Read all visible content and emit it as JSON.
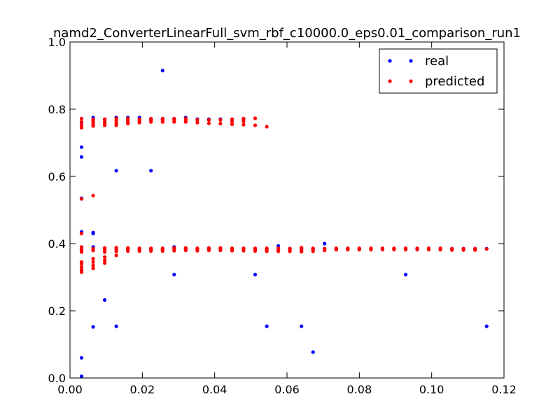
{
  "chart_data": {
    "type": "scatter",
    "title": "namd2_ConverterLinearFull_svm_rbf_c10000.0_eps0.01_comparison_run1",
    "xlabel": "",
    "ylabel": "",
    "xlim": [
      0.0,
      0.12
    ],
    "ylim": [
      0.0,
      1.0
    ],
    "xticks": [
      "0.00",
      "0.02",
      "0.04",
      "0.06",
      "0.08",
      "0.10",
      "0.12"
    ],
    "yticks": [
      "0.0",
      "0.2",
      "0.4",
      "0.6",
      "0.8",
      "1.0"
    ],
    "legend_position": "top-right",
    "grid": false,
    "series": [
      {
        "name": "real",
        "color": "#0000ff",
        "points": [
          [
            0.0032,
            0.005
          ],
          [
            0.0032,
            0.06
          ],
          [
            0.0032,
            0.32
          ],
          [
            0.0032,
            0.33
          ],
          [
            0.0032,
            0.38
          ],
          [
            0.0032,
            0.385
          ],
          [
            0.0032,
            0.435
          ],
          [
            0.0032,
            0.535
          ],
          [
            0.0032,
            0.658
          ],
          [
            0.0032,
            0.687
          ],
          [
            0.0032,
            0.76
          ],
          [
            0.0064,
            0.152
          ],
          [
            0.0064,
            0.38
          ],
          [
            0.0064,
            0.39
          ],
          [
            0.0064,
            0.43
          ],
          [
            0.0064,
            0.433
          ],
          [
            0.0064,
            0.77
          ],
          [
            0.0064,
            0.775
          ],
          [
            0.0096,
            0.232
          ],
          [
            0.0096,
            0.385
          ],
          [
            0.0096,
            0.77
          ],
          [
            0.0128,
            0.154
          ],
          [
            0.0128,
            0.385
          ],
          [
            0.0128,
            0.617
          ],
          [
            0.0128,
            0.775
          ],
          [
            0.016,
            0.385
          ],
          [
            0.016,
            0.775
          ],
          [
            0.0192,
            0.385
          ],
          [
            0.0192,
            0.775
          ],
          [
            0.0224,
            0.385
          ],
          [
            0.0224,
            0.617
          ],
          [
            0.0224,
            0.77
          ],
          [
            0.0256,
            0.385
          ],
          [
            0.0256,
            0.77
          ],
          [
            0.0256,
            0.915
          ],
          [
            0.0288,
            0.308
          ],
          [
            0.0288,
            0.39
          ],
          [
            0.0288,
            0.77
          ],
          [
            0.032,
            0.385
          ],
          [
            0.032,
            0.775
          ],
          [
            0.0352,
            0.385
          ],
          [
            0.0352,
            0.77
          ],
          [
            0.0384,
            0.385
          ],
          [
            0.0384,
            0.77
          ],
          [
            0.0416,
            0.385
          ],
          [
            0.0416,
            0.77
          ],
          [
            0.0448,
            0.385
          ],
          [
            0.0448,
            0.77
          ],
          [
            0.048,
            0.385
          ],
          [
            0.048,
            0.77
          ],
          [
            0.0512,
            0.308
          ],
          [
            0.0512,
            0.385
          ],
          [
            0.0544,
            0.154
          ],
          [
            0.0544,
            0.385
          ],
          [
            0.0576,
            0.385
          ],
          [
            0.0576,
            0.393
          ],
          [
            0.0608,
            0.385
          ],
          [
            0.064,
            0.154
          ],
          [
            0.064,
            0.385
          ],
          [
            0.0672,
            0.077
          ],
          [
            0.0672,
            0.385
          ],
          [
            0.0704,
            0.385
          ],
          [
            0.0704,
            0.4
          ],
          [
            0.0736,
            0.385
          ],
          [
            0.0768,
            0.385
          ],
          [
            0.08,
            0.385
          ],
          [
            0.0832,
            0.385
          ],
          [
            0.0864,
            0.385
          ],
          [
            0.0896,
            0.385
          ],
          [
            0.0928,
            0.308
          ],
          [
            0.0928,
            0.385
          ],
          [
            0.096,
            0.385
          ],
          [
            0.0992,
            0.385
          ],
          [
            0.1024,
            0.385
          ],
          [
            0.1056,
            0.385
          ],
          [
            0.1088,
            0.385
          ],
          [
            0.112,
            0.385
          ],
          [
            0.1152,
            0.154
          ],
          [
            0.1152,
            0.385
          ]
        ]
      },
      {
        "name": "predicted",
        "color": "#ff0000",
        "points": [
          [
            0.0032,
            0.315
          ],
          [
            0.0032,
            0.322
          ],
          [
            0.0032,
            0.33
          ],
          [
            0.0032,
            0.34
          ],
          [
            0.0032,
            0.345
          ],
          [
            0.0032,
            0.375
          ],
          [
            0.0032,
            0.38
          ],
          [
            0.0032,
            0.385
          ],
          [
            0.0032,
            0.39
          ],
          [
            0.0032,
            0.43
          ],
          [
            0.0032,
            0.533
          ],
          [
            0.0032,
            0.745
          ],
          [
            0.0032,
            0.752
          ],
          [
            0.0032,
            0.762
          ],
          [
            0.0032,
            0.772
          ],
          [
            0.0064,
            0.326
          ],
          [
            0.0064,
            0.335
          ],
          [
            0.0064,
            0.345
          ],
          [
            0.0064,
            0.355
          ],
          [
            0.0064,
            0.38
          ],
          [
            0.0064,
            0.385
          ],
          [
            0.0064,
            0.543
          ],
          [
            0.0064,
            0.75
          ],
          [
            0.0064,
            0.755
          ],
          [
            0.0064,
            0.76
          ],
          [
            0.0064,
            0.765
          ],
          [
            0.0064,
            0.77
          ],
          [
            0.0096,
            0.342
          ],
          [
            0.0096,
            0.35
          ],
          [
            0.0096,
            0.36
          ],
          [
            0.0096,
            0.375
          ],
          [
            0.0096,
            0.382
          ],
          [
            0.0096,
            0.387
          ],
          [
            0.0096,
            0.752
          ],
          [
            0.0096,
            0.758
          ],
          [
            0.0096,
            0.764
          ],
          [
            0.0096,
            0.77
          ],
          [
            0.0128,
            0.365
          ],
          [
            0.0128,
            0.377
          ],
          [
            0.0128,
            0.383
          ],
          [
            0.0128,
            0.388
          ],
          [
            0.0128,
            0.752
          ],
          [
            0.0128,
            0.758
          ],
          [
            0.0128,
            0.765
          ],
          [
            0.0128,
            0.772
          ],
          [
            0.016,
            0.378
          ],
          [
            0.016,
            0.384
          ],
          [
            0.016,
            0.387
          ],
          [
            0.016,
            0.757
          ],
          [
            0.016,
            0.762
          ],
          [
            0.016,
            0.767
          ],
          [
            0.016,
            0.772
          ],
          [
            0.0192,
            0.378
          ],
          [
            0.0192,
            0.382
          ],
          [
            0.0192,
            0.386
          ],
          [
            0.0192,
            0.76
          ],
          [
            0.0192,
            0.765
          ],
          [
            0.0192,
            0.77
          ],
          [
            0.0224,
            0.378
          ],
          [
            0.0224,
            0.383
          ],
          [
            0.0224,
            0.386
          ],
          [
            0.0224,
            0.762
          ],
          [
            0.0224,
            0.767
          ],
          [
            0.0224,
            0.772
          ],
          [
            0.0256,
            0.378
          ],
          [
            0.0256,
            0.383
          ],
          [
            0.0256,
            0.386
          ],
          [
            0.0256,
            0.762
          ],
          [
            0.0256,
            0.767
          ],
          [
            0.0256,
            0.772
          ],
          [
            0.0288,
            0.379
          ],
          [
            0.0288,
            0.384
          ],
          [
            0.0288,
            0.387
          ],
          [
            0.0288,
            0.762
          ],
          [
            0.0288,
            0.767
          ],
          [
            0.0288,
            0.772
          ],
          [
            0.032,
            0.38
          ],
          [
            0.032,
            0.384
          ],
          [
            0.032,
            0.387
          ],
          [
            0.032,
            0.762
          ],
          [
            0.032,
            0.767
          ],
          [
            0.032,
            0.772
          ],
          [
            0.0352,
            0.379
          ],
          [
            0.0352,
            0.383
          ],
          [
            0.0352,
            0.386
          ],
          [
            0.0352,
            0.76
          ],
          [
            0.0352,
            0.768
          ],
          [
            0.0384,
            0.38
          ],
          [
            0.0384,
            0.384
          ],
          [
            0.0384,
            0.387
          ],
          [
            0.0384,
            0.758
          ],
          [
            0.0384,
            0.768
          ],
          [
            0.0416,
            0.38
          ],
          [
            0.0416,
            0.384
          ],
          [
            0.0416,
            0.387
          ],
          [
            0.0416,
            0.757
          ],
          [
            0.0416,
            0.768
          ],
          [
            0.0448,
            0.379
          ],
          [
            0.0448,
            0.383
          ],
          [
            0.0448,
            0.386
          ],
          [
            0.0448,
            0.755
          ],
          [
            0.0448,
            0.764
          ],
          [
            0.0448,
            0.77
          ],
          [
            0.048,
            0.379
          ],
          [
            0.048,
            0.383
          ],
          [
            0.048,
            0.386
          ],
          [
            0.048,
            0.754
          ],
          [
            0.048,
            0.764
          ],
          [
            0.048,
            0.772
          ],
          [
            0.0512,
            0.378
          ],
          [
            0.0512,
            0.383
          ],
          [
            0.0512,
            0.386
          ],
          [
            0.0512,
            0.752
          ],
          [
            0.0512,
            0.773
          ],
          [
            0.0544,
            0.377
          ],
          [
            0.0544,
            0.382
          ],
          [
            0.0544,
            0.386
          ],
          [
            0.0544,
            0.748
          ],
          [
            0.0576,
            0.377
          ],
          [
            0.0576,
            0.381
          ],
          [
            0.0576,
            0.386
          ],
          [
            0.0608,
            0.377
          ],
          [
            0.0608,
            0.381
          ],
          [
            0.0608,
            0.385
          ],
          [
            0.064,
            0.376
          ],
          [
            0.064,
            0.38
          ],
          [
            0.064,
            0.384
          ],
          [
            0.064,
            0.388
          ],
          [
            0.0672,
            0.377
          ],
          [
            0.0672,
            0.382
          ],
          [
            0.0672,
            0.386
          ],
          [
            0.0704,
            0.38
          ],
          [
            0.0704,
            0.385
          ],
          [
            0.0736,
            0.382
          ],
          [
            0.0736,
            0.386
          ],
          [
            0.0768,
            0.382
          ],
          [
            0.0768,
            0.386
          ],
          [
            0.08,
            0.382
          ],
          [
            0.08,
            0.386
          ],
          [
            0.0832,
            0.382
          ],
          [
            0.0832,
            0.386
          ],
          [
            0.0864,
            0.382
          ],
          [
            0.0864,
            0.386
          ],
          [
            0.0896,
            0.382
          ],
          [
            0.0896,
            0.386
          ],
          [
            0.0928,
            0.382
          ],
          [
            0.0928,
            0.386
          ],
          [
            0.096,
            0.382
          ],
          [
            0.096,
            0.386
          ],
          [
            0.0992,
            0.382
          ],
          [
            0.0992,
            0.386
          ],
          [
            0.1024,
            0.382
          ],
          [
            0.1024,
            0.386
          ],
          [
            0.1056,
            0.381
          ],
          [
            0.1056,
            0.385
          ],
          [
            0.1088,
            0.381
          ],
          [
            0.1088,
            0.385
          ],
          [
            0.112,
            0.381
          ],
          [
            0.112,
            0.385
          ],
          [
            0.1152,
            0.384
          ]
        ]
      }
    ]
  }
}
